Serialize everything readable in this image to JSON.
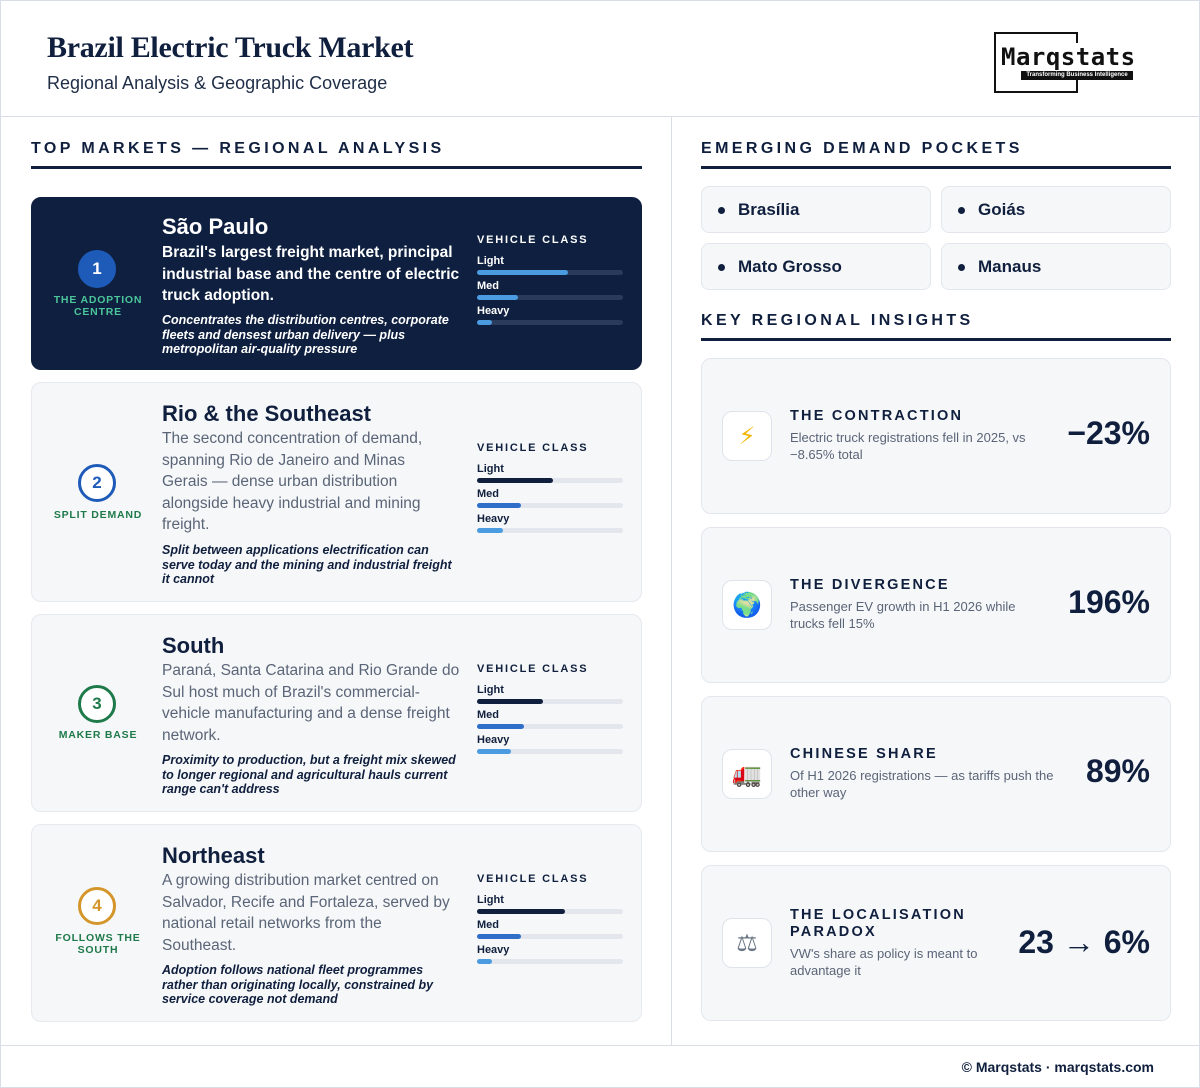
{
  "header": {
    "title": "Brazil Electric Truck Market",
    "subtitle": "Regional Analysis & Geographic Coverage",
    "logo_word": "Marqstats",
    "logo_tagline": "Transforming Business Intelligence"
  },
  "top_markets": {
    "section_title": "TOP MARKETS — REGIONAL ANALYSIS",
    "vehicle_class_label": "VEHICLE CLASS",
    "items": [
      {
        "rank": "1",
        "rank_label": "THE ADOPTION CENTRE",
        "name": "São Paulo",
        "description": "Brazil's largest freight market, principal industrial base and the centre of electric truck adoption.",
        "note": "Concentrates the distribution centres, corporate fleets and densest urban delivery — plus metropolitan air-quality pressure",
        "classes": [
          {
            "label": "Light",
            "level": 0.62
          },
          {
            "label": "Med",
            "level": 0.28
          },
          {
            "label": "Heavy",
            "level": 0.1
          }
        ]
      },
      {
        "rank": "2",
        "rank_label": "SPLIT DEMAND",
        "name": "Rio & the Southeast",
        "description": "The second concentration of demand, spanning Rio de Janeiro and Minas Gerais — dense urban distribution alongside heavy industrial and mining freight.",
        "note": "Split between applications electrification can serve today and the mining and industrial freight it cannot",
        "classes": [
          {
            "label": "Light",
            "level": 0.52
          },
          {
            "label": "Med",
            "level": 0.3
          },
          {
            "label": "Heavy",
            "level": 0.18
          }
        ]
      },
      {
        "rank": "3",
        "rank_label": "MAKER BASE",
        "name": "South",
        "description": "Paraná, Santa Catarina and Rio Grande do Sul host much of Brazil's commercial-vehicle manufacturing and a dense freight network.",
        "note": "Proximity to production, but a freight mix skewed to longer regional and agricultural hauls current range can't address",
        "classes": [
          {
            "label": "Light",
            "level": 0.45
          },
          {
            "label": "Med",
            "level": 0.32
          },
          {
            "label": "Heavy",
            "level": 0.23
          }
        ]
      },
      {
        "rank": "4",
        "rank_label": "FOLLOWS THE SOUTH",
        "name": "Northeast",
        "description": "A growing distribution market centred on Salvador, Recife and Fortaleza, served by national retail networks from the Southeast.",
        "note": "Adoption follows national fleet programmes rather than originating locally, constrained by service coverage not demand",
        "classes": [
          {
            "label": "Light",
            "level": 0.6
          },
          {
            "label": "Med",
            "level": 0.3
          },
          {
            "label": "Heavy",
            "level": 0.1
          }
        ]
      }
    ]
  },
  "emerging": {
    "section_title": "EMERGING DEMAND POCKETS",
    "items": [
      "Brasília",
      "Goiás",
      "Mato Grosso",
      "Manaus"
    ]
  },
  "insights": {
    "section_title": "KEY REGIONAL INSIGHTS",
    "items": [
      {
        "icon": "lightning-icon",
        "glyph": "⚡",
        "title": "THE CONTRACTION",
        "description": "Electric truck registrations fell in 2025, vs −8.65% total",
        "value": "−23%"
      },
      {
        "icon": "globe-icon",
        "glyph": "🌍",
        "title": "THE DIVERGENCE",
        "description": "Passenger EV growth in H1 2026 while trucks fell 15%",
        "value": "196%"
      },
      {
        "icon": "truck-icon",
        "glyph": "🚛",
        "title": "CHINESE SHARE",
        "description": "Of H1 2026 registrations — as tariffs push the other way",
        "value": "89%"
      },
      {
        "icon": "scales-icon",
        "glyph": "⚖",
        "title": "THE LOCALISATION PARADOX",
        "description": "VW's share as policy is meant to advantage it",
        "value": "23 → 6%"
      }
    ]
  },
  "colors": {
    "navy": "#0e1f3f",
    "rank_1": "#1e5bb8",
    "rank_2": "#1e5bb8",
    "rank_3": "#1e7a4a",
    "rank_4": "#d4962a",
    "bar_light": "#0f1f3d",
    "bar_med": "#2f6fca",
    "bar_heavy": "#4a9be0"
  },
  "footer": {
    "text": "© Marqstats · marqstats.com"
  }
}
